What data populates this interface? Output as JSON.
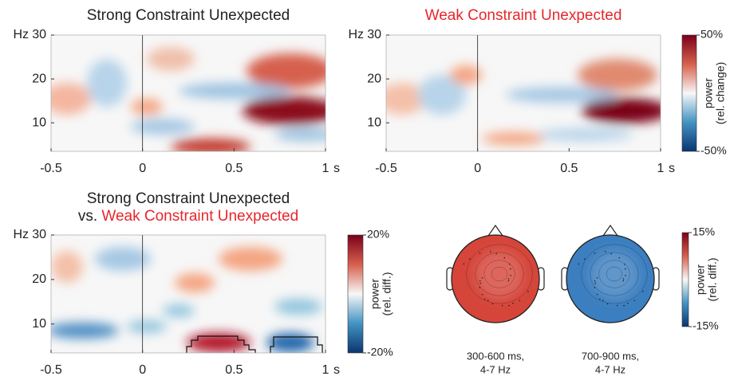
{
  "chart_data": [
    {
      "type": "heatmap",
      "title": [
        {
          "text": "Strong Constraint Unexpected",
          "color": "#222222"
        }
      ],
      "ylabel": "Hz",
      "xlabel": "s",
      "xlim": [
        -0.5,
        1
      ],
      "xticks": [
        -0.5,
        0,
        0.5,
        1
      ],
      "ylim": [
        3.5,
        30
      ],
      "yticks": [
        10,
        20,
        30
      ]
    },
    {
      "type": "heatmap",
      "title": [
        {
          "text": "Weak Constraint Unexpected",
          "color": "#e8262b"
        }
      ],
      "ylabel": "Hz",
      "xlabel": "s",
      "xlim": [
        -0.5,
        1
      ],
      "xticks": [
        -0.5,
        0,
        0.5,
        1
      ],
      "ylim": [
        3.5,
        30
      ],
      "yticks": [
        10,
        20,
        30
      ],
      "colorbar": {
        "label": [
          "power",
          "(rel. change)"
        ],
        "lim": [
          -50,
          50
        ],
        "ticks": [
          {
            "value": 50,
            "label": "50%"
          },
          {
            "value": -50,
            "label": "-50%"
          }
        ]
      }
    },
    {
      "type": "heatmap",
      "title": [
        {
          "text": "Strong Constraint Unexpected",
          "color": "#222222"
        },
        {
          "text": "vs. ",
          "color": "#222222"
        },
        {
          "text": "Weak Constraint Unexpected",
          "color": "#e8262b"
        }
      ],
      "ylabel": "Hz",
      "xlabel": "s",
      "xlim": [
        -0.5,
        1
      ],
      "xticks": [
        -0.5,
        0,
        0.5,
        1
      ],
      "ylim": [
        3.5,
        30
      ],
      "yticks": [
        10,
        20,
        30
      ],
      "colorbar": {
        "label": [
          "power",
          "(rel. diff.)"
        ],
        "lim": [
          -20,
          20
        ],
        "ticks": [
          {
            "value": 20,
            "label": "20%"
          },
          {
            "value": -20,
            "label": "-20%"
          }
        ]
      }
    },
    {
      "type": "topomap",
      "maps": [
        {
          "caption": [
            "300-600 ms,",
            "4-7 Hz"
          ],
          "color": "#d6453a"
        },
        {
          "caption": [
            "700-900 ms,",
            "4-7 Hz"
          ],
          "color": "#3c7fc0"
        }
      ],
      "colorbar": {
        "label": [
          "power",
          "(rel. diff.)"
        ],
        "lim": [
          -15,
          15
        ],
        "ticks": [
          {
            "value": 15,
            "label": "15%"
          },
          {
            "value": -15,
            "label": "-15%"
          }
        ]
      }
    }
  ]
}
